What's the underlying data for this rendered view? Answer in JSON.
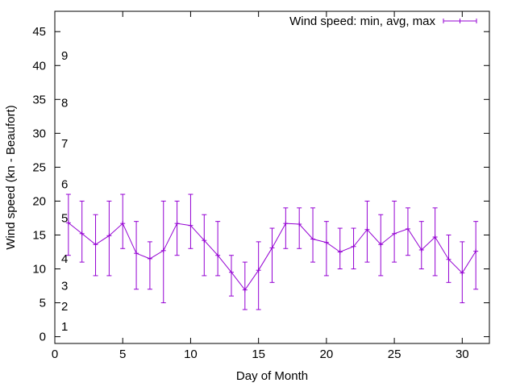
{
  "chart_data": {
    "type": "line",
    "xlabel": "Day of Month",
    "ylabel": "Wind speed (kn - Beaufort)",
    "xlim": [
      0,
      32
    ],
    "ylim": [
      -1,
      48
    ],
    "xticks": [
      "0",
      "5",
      "10",
      "15",
      "20",
      "25",
      "30"
    ],
    "yticks": [
      "0",
      "5",
      "10",
      "15",
      "20",
      "25",
      "30",
      "35",
      "40",
      "45"
    ],
    "grid": false,
    "legend_position": "top-right",
    "series": [
      {
        "name": "Wind speed: min, avg, max",
        "color": "#9400d3",
        "x": [
          1,
          2,
          3,
          4,
          5,
          6,
          7,
          8,
          9,
          10,
          11,
          12,
          13,
          14,
          15,
          16,
          17,
          18,
          19,
          20,
          21,
          22,
          23,
          24,
          25,
          26,
          27,
          28,
          29,
          30,
          31
        ],
        "avg": [
          16.8,
          15.2,
          13.6,
          14.9,
          16.7,
          12.3,
          11.5,
          12.7,
          16.7,
          16.4,
          14.2,
          12,
          9.5,
          6.9,
          9.8,
          13.1,
          16.7,
          16.6,
          14.4,
          13.9,
          12.5,
          13.3,
          15.8,
          13.6,
          15.2,
          15.9,
          12.8,
          14.7,
          11.4,
          9.4,
          12.6
        ],
        "min": [
          12,
          11,
          9,
          9,
          13,
          7,
          7,
          5,
          12,
          13,
          9,
          9,
          6,
          4,
          4,
          8,
          13,
          13,
          11,
          9,
          10,
          10,
          11,
          9,
          11,
          12,
          10,
          9,
          8,
          5,
          7
        ],
        "max": [
          21,
          20,
          18,
          20,
          21,
          17,
          14,
          20,
          20,
          21,
          18,
          17,
          12,
          11,
          14,
          16,
          19,
          19,
          19,
          17,
          16,
          16,
          20,
          18,
          20,
          19,
          17,
          19,
          15,
          14,
          17
        ]
      }
    ],
    "beaufort_labels": [
      {
        "label": "1",
        "at": 1
      },
      {
        "label": "2",
        "at": 4
      },
      {
        "label": "3",
        "at": 7
      },
      {
        "label": "4",
        "at": 11
      },
      {
        "label": "5",
        "at": 17
      },
      {
        "label": "6",
        "at": 22
      },
      {
        "label": "7",
        "at": 28
      },
      {
        "label": "8",
        "at": 34
      },
      {
        "label": "9",
        "at": 41
      }
    ]
  }
}
